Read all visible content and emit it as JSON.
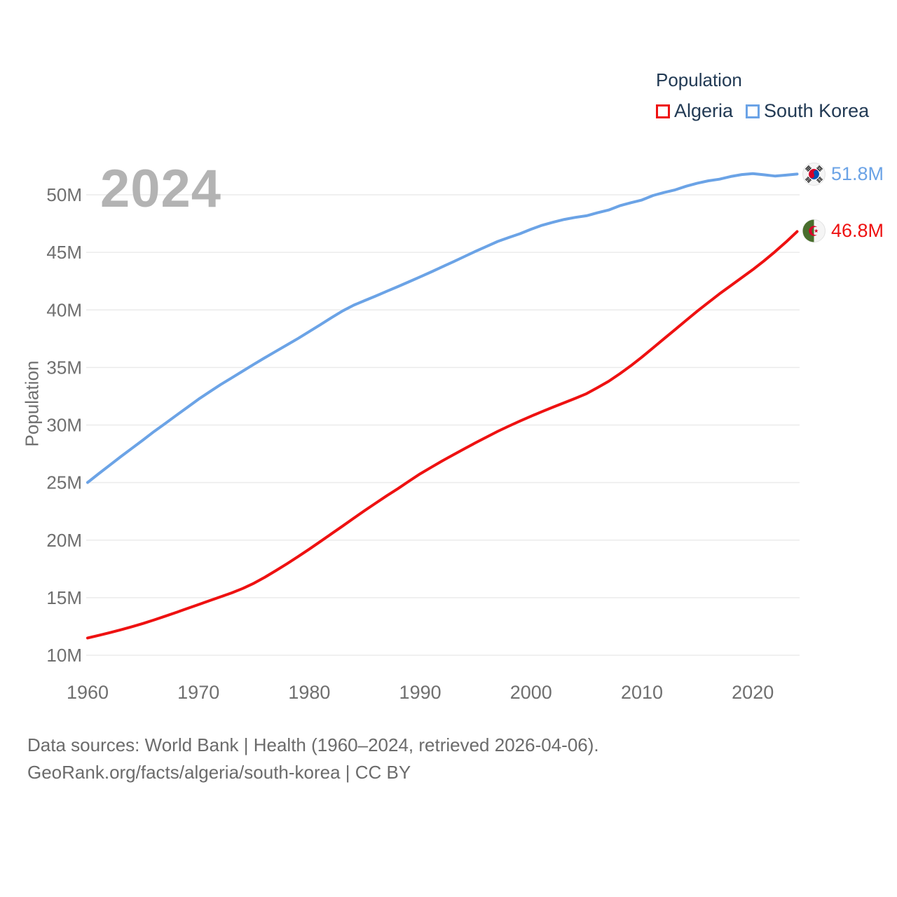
{
  "watermark": "2024",
  "legend": {
    "title": "Population",
    "items": [
      {
        "label": "Algeria",
        "color": "#ee1111"
      },
      {
        "label": "South Korea",
        "color": "#6ba3e6"
      }
    ]
  },
  "end_labels": [
    {
      "series": "South Korea",
      "value": "51.8M",
      "color": "#6ba3e6",
      "flag": "south-korea-flag-icon"
    },
    {
      "series": "Algeria",
      "value": "46.8M",
      "color": "#ee1111",
      "flag": "algeria-flag-icon"
    }
  ],
  "footer": {
    "line1": "Data sources: World Bank | Health (1960–2024, retrieved 2026-04-06).",
    "line2": "GeoRank.org/facts/algeria/south-korea | CC BY"
  },
  "chart_data": {
    "type": "line",
    "title": "Population",
    "xlabel": "",
    "ylabel": "Population",
    "xlim": [
      1960,
      2024
    ],
    "ylim_millions": [
      10,
      50
    ],
    "grid": "horizontal",
    "legend_position": "top-right",
    "x_ticks": [
      {
        "value": 1960,
        "label": "1960"
      },
      {
        "value": 1970,
        "label": "1970"
      },
      {
        "value": 1980,
        "label": "1980"
      },
      {
        "value": 1990,
        "label": "1990"
      },
      {
        "value": 2000,
        "label": "2000"
      },
      {
        "value": 2010,
        "label": "2010"
      },
      {
        "value": 2020,
        "label": "2020"
      }
    ],
    "y_ticks": [
      {
        "value": 10,
        "label": "10M"
      },
      {
        "value": 15,
        "label": "15M"
      },
      {
        "value": 20,
        "label": "20M"
      },
      {
        "value": 25,
        "label": "25M"
      },
      {
        "value": 30,
        "label": "30M"
      },
      {
        "value": 35,
        "label": "35M"
      },
      {
        "value": 40,
        "label": "40M"
      },
      {
        "value": 45,
        "label": "45M"
      },
      {
        "value": 50,
        "label": "50M"
      }
    ],
    "x": [
      1960,
      1961,
      1962,
      1963,
      1964,
      1965,
      1966,
      1967,
      1968,
      1969,
      1970,
      1971,
      1972,
      1973,
      1974,
      1975,
      1976,
      1977,
      1978,
      1979,
      1980,
      1981,
      1982,
      1983,
      1984,
      1985,
      1986,
      1987,
      1988,
      1989,
      1990,
      1991,
      1992,
      1993,
      1994,
      1995,
      1996,
      1997,
      1998,
      1999,
      2000,
      2001,
      2002,
      2003,
      2004,
      2005,
      2006,
      2007,
      2008,
      2009,
      2010,
      2011,
      2012,
      2013,
      2014,
      2015,
      2016,
      2017,
      2018,
      2019,
      2020,
      2021,
      2022,
      2023,
      2024
    ],
    "series": [
      {
        "name": "Algeria",
        "color": "#ee1111",
        "unit": "millions",
        "final_label": "46.8M",
        "values": [
          11.5,
          11.72,
          11.96,
          12.21,
          12.48,
          12.76,
          13.07,
          13.39,
          13.72,
          14.06,
          14.4,
          14.74,
          15.08,
          15.42,
          15.8,
          16.25,
          16.78,
          17.36,
          17.96,
          18.58,
          19.22,
          19.88,
          20.55,
          21.22,
          21.9,
          22.57,
          23.22,
          23.86,
          24.48,
          25.13,
          25.76,
          26.33,
          26.89,
          27.42,
          27.94,
          28.46,
          28.96,
          29.45,
          29.91,
          30.35,
          30.77,
          31.17,
          31.56,
          31.94,
          32.32,
          32.72,
          33.25,
          33.8,
          34.45,
          35.15,
          35.9,
          36.7,
          37.5,
          38.3,
          39.1,
          39.9,
          40.65,
          41.4,
          42.1,
          42.8,
          43.5,
          44.25,
          45.05,
          45.9,
          46.81
        ]
      },
      {
        "name": "South Korea",
        "color": "#6ba3e6",
        "unit": "millions",
        "final_label": "51.8M",
        "values": [
          25.01,
          25.77,
          26.51,
          27.26,
          27.98,
          28.7,
          29.44,
          30.13,
          30.84,
          31.54,
          32.24,
          32.88,
          33.51,
          34.1,
          34.69,
          35.28,
          35.85,
          36.41,
          36.97,
          37.53,
          38.12,
          38.72,
          39.33,
          39.91,
          40.41,
          40.81,
          41.21,
          41.62,
          42.03,
          42.45,
          42.87,
          43.3,
          43.75,
          44.19,
          44.64,
          45.09,
          45.52,
          45.95,
          46.29,
          46.62,
          47.01,
          47.36,
          47.62,
          47.86,
          48.04,
          48.18,
          48.44,
          48.68,
          49.05,
          49.31,
          49.55,
          49.94,
          50.2,
          50.43,
          50.75,
          51.01,
          51.22,
          51.36,
          51.59,
          51.76,
          51.84,
          51.74,
          51.63,
          51.71,
          51.8
        ]
      }
    ]
  }
}
